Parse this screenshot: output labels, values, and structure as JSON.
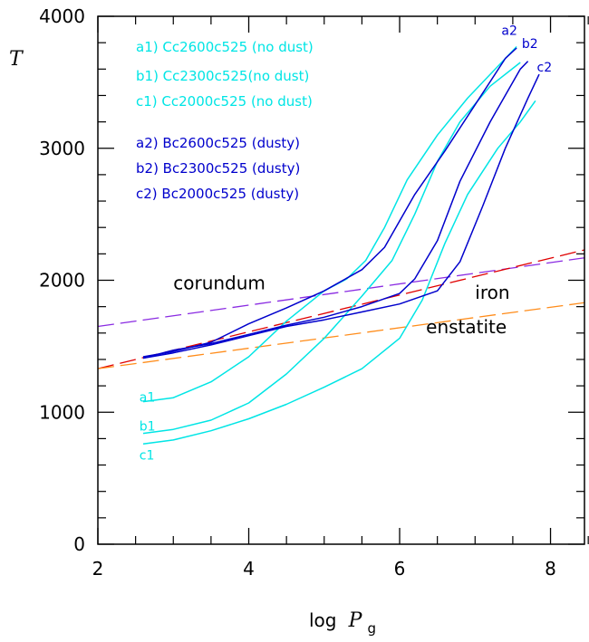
{
  "chart_data": {
    "type": "line",
    "xlabel_prefix": "log",
    "xlabel_symbol": "P",
    "xlabel_sub": "g",
    "ylabel": "T",
    "xlim": [
      2,
      8.45
    ],
    "ylim": [
      0,
      4000
    ],
    "xticks": [
      2,
      4,
      6,
      8
    ],
    "yticks": [
      0,
      1000,
      2000,
      3000,
      4000
    ],
    "xminor": [
      2.5,
      3,
      3.5,
      4.5,
      5,
      5.5,
      6.5,
      7,
      7.5,
      8.5
    ],
    "yminor": [
      200,
      400,
      600,
      800,
      1200,
      1400,
      1600,
      1800,
      2200,
      2400,
      2600,
      2800,
      3200,
      3400,
      3600,
      3800
    ],
    "colors": {
      "no_dust": "#00e5e5",
      "dusty": "#0000cc",
      "corundum": "#8a2be2",
      "iron": "#e00000",
      "enstatite": "#ff8c1a"
    },
    "legend": [
      {
        "label": "a1) Cc2600c525 (no dust)",
        "color": "#00e5e5"
      },
      {
        "label": "b1) Cc2300c525(no dust)",
        "color": "#00e5e5"
      },
      {
        "label": "c1) Cc2000c525 (no dust)",
        "color": "#00e5e5"
      },
      {
        "label": "a2) Bc2600c525 (dusty)",
        "color": "#0000cc"
      },
      {
        "label": "b2) Bc2300c525 (dusty)",
        "color": "#0000cc"
      },
      {
        "label": "c2) Bc2000c525 (dusty)",
        "color": "#0000cc"
      }
    ],
    "condensation_lines": [
      {
        "name": "corundum",
        "color": "#8a2be2",
        "points": [
          [
            2.0,
            1650
          ],
          [
            8.45,
            2170
          ]
        ]
      },
      {
        "name": "iron",
        "color": "#e00000",
        "points": [
          [
            2.0,
            1330
          ],
          [
            8.45,
            2230
          ]
        ]
      },
      {
        "name": "enstatite",
        "color": "#ff8c1a",
        "points": [
          [
            2.0,
            1330
          ],
          [
            8.45,
            1830
          ]
        ]
      }
    ],
    "annotations": [
      {
        "text": "corundum",
        "x": 3.0,
        "y": 1930
      },
      {
        "text": "iron",
        "x": 7.0,
        "y": 1860
      },
      {
        "text": "enstatite",
        "x": 6.35,
        "y": 1600
      }
    ],
    "series": [
      {
        "name": "a1",
        "label": "a1",
        "color": "#00e5e5",
        "label_at": [
          2.55,
          1080
        ],
        "points": [
          [
            2.6,
            1080
          ],
          [
            3.0,
            1110
          ],
          [
            3.5,
            1230
          ],
          [
            4.0,
            1420
          ],
          [
            4.5,
            1690
          ],
          [
            5.0,
            1920
          ],
          [
            5.3,
            2010
          ],
          [
            5.55,
            2150
          ],
          [
            5.8,
            2400
          ],
          [
            6.1,
            2760
          ],
          [
            6.5,
            3100
          ],
          [
            6.9,
            3380
          ],
          [
            7.3,
            3620
          ],
          [
            7.55,
            3770
          ]
        ]
      },
      {
        "name": "b1",
        "label": "b1",
        "color": "#00e5e5",
        "label_at": [
          2.55,
          860
        ],
        "points": [
          [
            2.6,
            840
          ],
          [
            3.0,
            870
          ],
          [
            3.5,
            940
          ],
          [
            4.0,
            1070
          ],
          [
            4.5,
            1290
          ],
          [
            5.0,
            1560
          ],
          [
            5.5,
            1880
          ],
          [
            5.9,
            2150
          ],
          [
            6.2,
            2500
          ],
          [
            6.5,
            2900
          ],
          [
            6.8,
            3200
          ],
          [
            7.2,
            3470
          ],
          [
            7.6,
            3650
          ]
        ]
      },
      {
        "name": "c1",
        "label": "c1",
        "color": "#00e5e5",
        "label_at": [
          2.55,
          640
        ],
        "points": [
          [
            2.6,
            760
          ],
          [
            3.0,
            790
          ],
          [
            3.5,
            860
          ],
          [
            4.0,
            950
          ],
          [
            4.5,
            1060
          ],
          [
            5.0,
            1190
          ],
          [
            5.5,
            1330
          ],
          [
            6.0,
            1560
          ],
          [
            6.3,
            1850
          ],
          [
            6.6,
            2280
          ],
          [
            6.9,
            2650
          ],
          [
            7.3,
            3000
          ],
          [
            7.6,
            3200
          ],
          [
            7.8,
            3360
          ]
        ]
      },
      {
        "name": "a2",
        "label": "a2",
        "color": "#0000cc",
        "label_at": [
          7.35,
          3860
        ],
        "points": [
          [
            2.6,
            1420
          ],
          [
            3.0,
            1460
          ],
          [
            3.5,
            1530
          ],
          [
            4.0,
            1670
          ],
          [
            4.5,
            1790
          ],
          [
            5.0,
            1920
          ],
          [
            5.5,
            2080
          ],
          [
            5.8,
            2250
          ],
          [
            6.2,
            2650
          ],
          [
            6.6,
            2980
          ],
          [
            7.0,
            3330
          ],
          [
            7.4,
            3680
          ],
          [
            7.55,
            3760
          ]
        ]
      },
      {
        "name": "b2",
        "label": "b2",
        "color": "#0000cc",
        "label_at": [
          7.62,
          3760
        ],
        "points": [
          [
            2.6,
            1410
          ],
          [
            3.0,
            1470
          ],
          [
            3.5,
            1520
          ],
          [
            4.0,
            1590
          ],
          [
            4.5,
            1660
          ],
          [
            5.0,
            1720
          ],
          [
            5.5,
            1800
          ],
          [
            6.0,
            1900
          ],
          [
            6.2,
            2010
          ],
          [
            6.5,
            2300
          ],
          [
            6.8,
            2750
          ],
          [
            7.2,
            3200
          ],
          [
            7.6,
            3600
          ],
          [
            7.7,
            3660
          ]
        ]
      },
      {
        "name": "c2",
        "label": "c2",
        "color": "#0000cc",
        "label_at": [
          7.82,
          3580
        ],
        "points": [
          [
            2.6,
            1410
          ],
          [
            3.0,
            1450
          ],
          [
            3.5,
            1510
          ],
          [
            4.0,
            1580
          ],
          [
            4.5,
            1650
          ],
          [
            5.0,
            1700
          ],
          [
            5.5,
            1760
          ],
          [
            6.0,
            1820
          ],
          [
            6.5,
            1920
          ],
          [
            6.8,
            2140
          ],
          [
            7.1,
            2560
          ],
          [
            7.4,
            3000
          ],
          [
            7.7,
            3380
          ],
          [
            7.85,
            3560
          ]
        ]
      }
    ]
  }
}
